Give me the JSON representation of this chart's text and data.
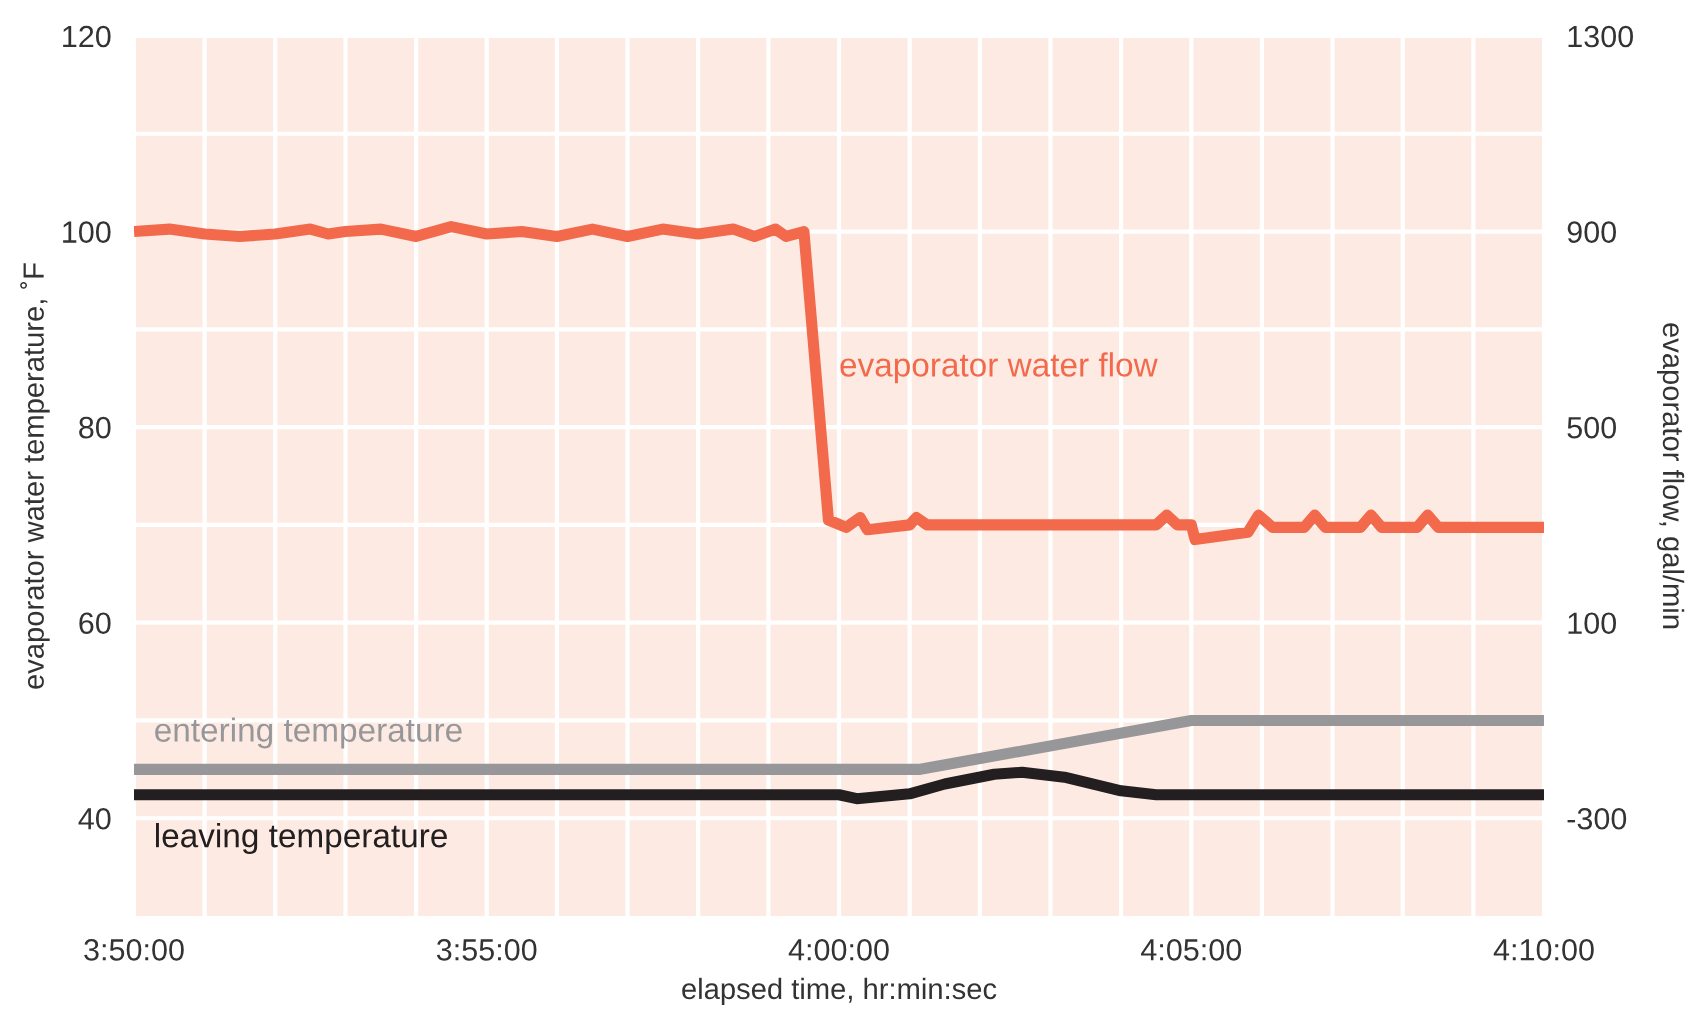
{
  "chart_data": {
    "type": "line",
    "xlabel": "elapsed time, hr:min:sec",
    "ylabel": "evaporator water temperature, ˚F",
    "y2label": "evaporator flow, gal/min",
    "xlim": [
      3.8333,
      4.1667
    ],
    "xticks": [
      {
        "value": 3.8333,
        "label": "3:50:00"
      },
      {
        "value": 3.85,
        "label": null
      },
      {
        "value": 3.8667,
        "label": null
      },
      {
        "value": 3.8833,
        "label": null
      },
      {
        "value": 3.9,
        "label": null
      },
      {
        "value": 3.9167,
        "label": "3:55:00"
      },
      {
        "value": 3.9333,
        "label": null
      },
      {
        "value": 3.95,
        "label": null
      },
      {
        "value": 3.9667,
        "label": null
      },
      {
        "value": 3.9833,
        "label": null
      },
      {
        "value": 4.0,
        "label": "4:00:00"
      },
      {
        "value": 4.0167,
        "label": null
      },
      {
        "value": 4.0333,
        "label": null
      },
      {
        "value": 4.05,
        "label": null
      },
      {
        "value": 4.0667,
        "label": null
      },
      {
        "value": 4.0833,
        "label": "4:05:00"
      },
      {
        "value": 4.1,
        "label": null
      },
      {
        "value": 4.1167,
        "label": null
      },
      {
        "value": 4.1333,
        "label": null
      },
      {
        "value": 4.15,
        "label": null
      },
      {
        "value": 4.1667,
        "label": "4:10:00"
      }
    ],
    "ylim": [
      30,
      120
    ],
    "yticks": [
      40,
      {
        "value": 50,
        "label": null
      },
      60,
      {
        "value": 70,
        "label": null
      },
      80,
      {
        "value": 90,
        "label": null
      },
      100,
      {
        "value": 110,
        "label": null
      },
      120
    ],
    "y2lim": [
      -500,
      1300
    ],
    "y2ticks": [
      -300,
      100,
      500,
      900,
      1300
    ],
    "grid": true,
    "legend": false,
    "series": [
      {
        "name": "evaporator water flow",
        "color": "#f26a4b",
        "axis": "y2",
        "x": [
          3.8333,
          3.8417,
          3.85,
          3.8583,
          3.8667,
          3.875,
          3.8792,
          3.8833,
          3.8917,
          3.9,
          3.9083,
          3.9167,
          3.925,
          3.9333,
          3.9417,
          3.95,
          3.9583,
          3.9667,
          3.975,
          3.98,
          3.985,
          3.9875,
          3.9917,
          3.9975,
          4.0017,
          4.005,
          4.0067,
          4.0167,
          4.0183,
          4.0208,
          4.075,
          4.0775,
          4.08,
          4.0833,
          4.0842,
          4.0967,
          4.0992,
          4.1025,
          4.11,
          4.1125,
          4.115,
          4.1233,
          4.1258,
          4.1283,
          4.1367,
          4.1392,
          4.1417,
          4.1667
        ],
        "values": [
          900,
          905,
          895,
          890,
          895,
          905,
          895,
          900,
          905,
          890,
          910,
          895,
          900,
          890,
          905,
          890,
          905,
          895,
          905,
          890,
          905,
          890,
          900,
          310,
          295,
          315,
          290,
          300,
          315,
          300,
          300,
          320,
          300,
          300,
          270,
          285,
          320,
          295,
          295,
          320,
          295,
          295,
          320,
          295,
          295,
          320,
          295,
          295
        ]
      },
      {
        "name": "entering temperature",
        "color": "#97979a",
        "x": [
          3.8333,
          4.0192,
          4.0833,
          4.1667
        ],
        "values": [
          45,
          45,
          50,
          50
        ]
      },
      {
        "name": "leaving temperature",
        "color": "#231f20",
        "x": [
          3.8333,
          4.0,
          4.0042,
          4.0167,
          4.025,
          4.0367,
          4.0433,
          4.0533,
          4.0667,
          4.075,
          4.1667
        ],
        "values": [
          42.4,
          42.4,
          42,
          42.5,
          43.5,
          44.5,
          44.7,
          44.2,
          42.8,
          42.4,
          42.4
        ]
      }
    ]
  }
}
